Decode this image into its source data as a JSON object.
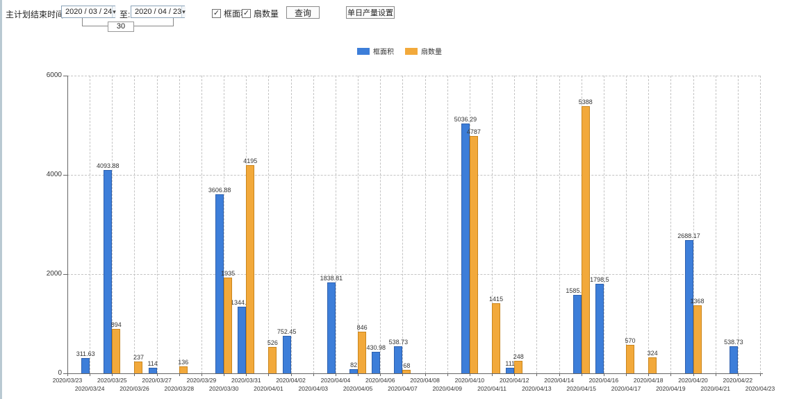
{
  "icons": {
    "dropdown": "▾",
    "check": "✓"
  },
  "toolbar": {
    "end_time_label": "主计划结束时间:",
    "date_from": "2020 / 03 / 24",
    "to_label": "至:",
    "date_to": "2020 / 04 / 23",
    "interval_days": "30",
    "checkbox_frame_area": {
      "label": "框面积",
      "checked": true
    },
    "checkbox_fan_count": {
      "label": "扇数量",
      "checked": true
    },
    "query_button": "查询",
    "daily_output_button": "单日产量设置"
  },
  "legend": [
    {
      "label": "框面积",
      "color": "#3d7ed9"
    },
    {
      "label": "扇数量",
      "color": "#f2a93b"
    }
  ],
  "chart_data": {
    "type": "bar",
    "title": "",
    "xlabel": "",
    "ylabel": "",
    "ylim": [
      0,
      6000
    ],
    "yticks": [
      0,
      2000,
      4000,
      6000
    ],
    "grid": "dashed",
    "legend_position": "top-center",
    "categories": [
      "2020/03/23",
      "2020/03/24",
      "2020/03/25",
      "2020/03/26",
      "2020/03/27",
      "2020/03/28",
      "2020/03/29",
      "2020/03/30",
      "2020/03/31",
      "2020/04/01",
      "2020/04/02",
      "2020/04/03",
      "2020/04/04",
      "2020/04/05",
      "2020/04/06",
      "2020/04/07",
      "2020/04/08",
      "2020/04/09",
      "2020/04/10",
      "2020/04/11",
      "2020/04/12",
      "2020/04/13",
      "2020/04/14",
      "2020/04/15",
      "2020/04/16",
      "2020/04/17",
      "2020/04/18",
      "2020/04/19",
      "2020/04/20",
      "2020/04/21",
      "2020/04/22",
      "2020/04/23"
    ],
    "series": [
      {
        "name": "框面积",
        "key": "frame-area",
        "color": "#3d7ed9",
        "border": "#2c5fae",
        "values": [
          null,
          311.63,
          4093.88,
          null,
          114,
          null,
          null,
          3606.88,
          1344.95,
          null,
          752.45,
          null,
          1838.81,
          82,
          430.98,
          538.73,
          null,
          null,
          5036.29,
          null,
          111,
          null,
          null,
          1585.96,
          1798.5,
          null,
          null,
          null,
          2688.17,
          null,
          538.73,
          null
        ]
      },
      {
        "name": "扇数量",
        "key": "fan-count",
        "color": "#f2a93b",
        "border": "#c9851d",
        "values": [
          null,
          null,
          894,
          237,
          null,
          136,
          null,
          1935,
          4195,
          526,
          null,
          null,
          null,
          846,
          null,
          68,
          null,
          null,
          4787,
          1415,
          248,
          null,
          null,
          5388,
          null,
          570,
          324,
          null,
          1368,
          null,
          null,
          null
        ]
      }
    ]
  }
}
